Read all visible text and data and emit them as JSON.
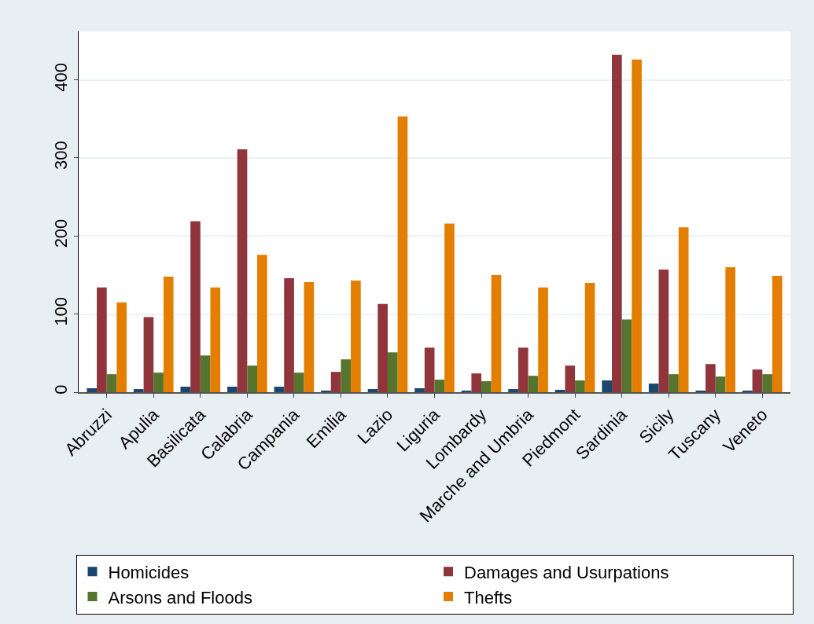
{
  "chart_data": {
    "type": "bar",
    "categories": [
      "Abruzzi",
      "Apulia",
      "Basilicata",
      "Calabria",
      "Campania",
      "Emilia",
      "Lazio",
      "Liguria",
      "Lombardy",
      "Marche and Umbria",
      "Piedmont",
      "Sardinia",
      "Sicily",
      "Tuscany",
      "Veneto"
    ],
    "series": [
      {
        "name": "Homicides",
        "color": "#1a476f",
        "values": [
          5,
          4,
          7,
          7,
          7,
          2,
          4,
          5,
          2,
          4,
          3,
          15,
          11,
          2,
          2
        ]
      },
      {
        "name": "Damages and Usurpations",
        "color": "#90353b",
        "values": [
          134,
          96,
          219,
          311,
          146,
          26,
          113,
          57,
          24,
          57,
          34,
          432,
          157,
          36,
          29
        ]
      },
      {
        "name": "Arsons and Floods",
        "color": "#55752f",
        "values": [
          23,
          25,
          47,
          34,
          25,
          42,
          51,
          16,
          14,
          21,
          15,
          93,
          23,
          20,
          23
        ]
      },
      {
        "name": "Thefts",
        "color": "#e37e00",
        "values": [
          115,
          148,
          134,
          176,
          141,
          143,
          353,
          216,
          150,
          134,
          140,
          426,
          211,
          160,
          149
        ]
      }
    ],
    "ylim": [
      0,
      462
    ],
    "yticks": [
      0,
      100,
      200,
      300,
      400
    ],
    "grid": "y",
    "legend": "bottom"
  }
}
